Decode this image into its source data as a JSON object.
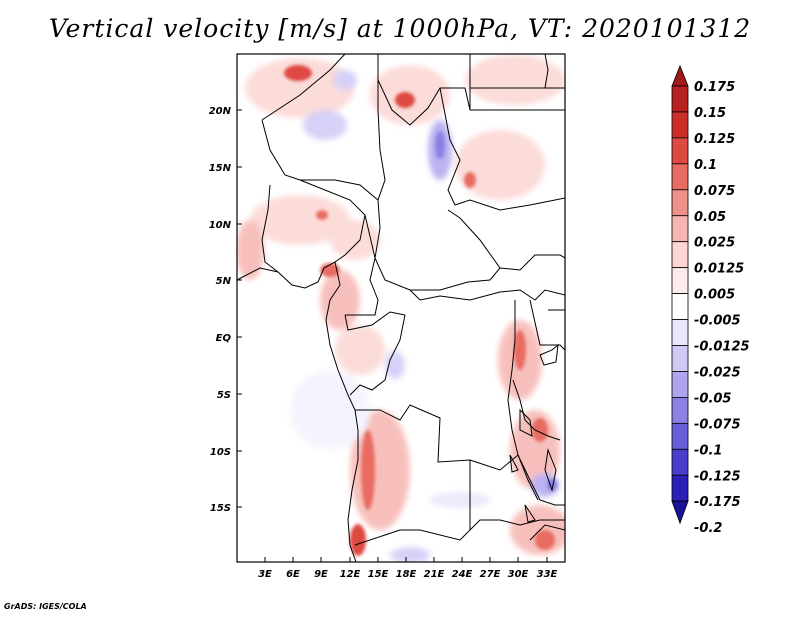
{
  "title": "Vertical velocity [m/s] at 1000hPa, VT: 2020101312",
  "credit": "GrADS: IGES/COLA",
  "map": {
    "region": "Central Africa",
    "lon_labels": [
      "3E",
      "6E",
      "9E",
      "12E",
      "15E",
      "18E",
      "21E",
      "24E",
      "27E",
      "30E",
      "33E"
    ],
    "lat_labels": [
      "20N",
      "15N",
      "10N",
      "5N",
      "EQ",
      "5S",
      "10S",
      "15S"
    ]
  },
  "colorbar": {
    "levels": [
      "0.175",
      "0.15",
      "0.125",
      "0.1",
      "0.075",
      "0.05",
      "0.025",
      "0.0125",
      "0.005",
      "-0.005",
      "-0.0125",
      "-0.025",
      "-0.05",
      "-0.075",
      "-0.1",
      "-0.125",
      "-0.175",
      "-0.2"
    ],
    "colors": [
      "#a01818",
      "#b8201f",
      "#cc2e2a",
      "#de4a42",
      "#e86c62",
      "#f0918a",
      "#f6b5b0",
      "#fbd6d3",
      "#fdeceb",
      "#ffffff",
      "#e9e6fb",
      "#cfc9f6",
      "#aea5ee",
      "#8c80e3",
      "#6a5dd8",
      "#4a3dcc",
      "#2b21b8",
      "#1a1299"
    ]
  }
}
